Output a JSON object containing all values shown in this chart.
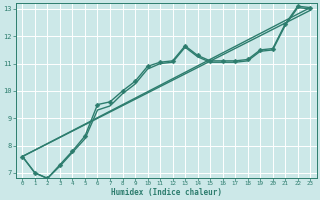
{
  "xlabel": "Humidex (Indice chaleur)",
  "xlim": [
    -0.5,
    23.5
  ],
  "ylim": [
    6.8,
    13.2
  ],
  "yticks": [
    7,
    8,
    9,
    10,
    11,
    12,
    13
  ],
  "xticks": [
    0,
    1,
    2,
    3,
    4,
    5,
    6,
    7,
    8,
    9,
    10,
    11,
    12,
    13,
    14,
    15,
    16,
    17,
    18,
    19,
    20,
    21,
    22,
    23
  ],
  "bg_color": "#cce8e8",
  "grid_color": "#ffffff",
  "line_color": "#2d7d6e",
  "series": [
    {
      "x": [
        0,
        1,
        2,
        3,
        4,
        5,
        6,
        7,
        8,
        9,
        10,
        11,
        12,
        13,
        14,
        15,
        16,
        17,
        18,
        19,
        20,
        21,
        22,
        23
      ],
      "y": [
        7.6,
        7.0,
        6.8,
        7.3,
        7.8,
        8.35,
        9.5,
        9.6,
        10.0,
        10.35,
        10.9,
        11.05,
        11.1,
        11.65,
        11.3,
        11.1,
        11.1,
        11.1,
        11.15,
        11.5,
        11.55,
        12.45,
        13.1,
        13.05
      ],
      "marker": "D",
      "markersize": 2.5,
      "linewidth": 1.0
    },
    {
      "x": [
        0,
        1,
        2,
        3,
        4,
        5,
        6,
        7,
        8,
        9,
        10,
        11,
        12,
        13,
        14,
        15,
        16,
        17,
        18,
        19,
        20,
        21,
        22,
        23
      ],
      "y": [
        7.6,
        7.0,
        6.8,
        7.25,
        7.75,
        8.25,
        9.3,
        9.45,
        9.9,
        10.25,
        10.8,
        11.0,
        11.05,
        11.6,
        11.25,
        11.05,
        11.05,
        11.05,
        11.1,
        11.45,
        11.5,
        12.4,
        13.05,
        13.0
      ],
      "marker": null,
      "markersize": 0,
      "linewidth": 1.0
    },
    {
      "x": [
        0,
        23
      ],
      "y": [
        7.6,
        13.05
      ],
      "marker": null,
      "markersize": 0,
      "linewidth": 1.0
    },
    {
      "x": [
        0,
        23
      ],
      "y": [
        7.6,
        12.95
      ],
      "marker": null,
      "markersize": 0,
      "linewidth": 1.0
    }
  ],
  "xlabel_fontsize": 5.5,
  "xtick_fontsize": 4.2,
  "ytick_fontsize": 5.0,
  "figsize": [
    3.2,
    2.0
  ],
  "dpi": 100
}
